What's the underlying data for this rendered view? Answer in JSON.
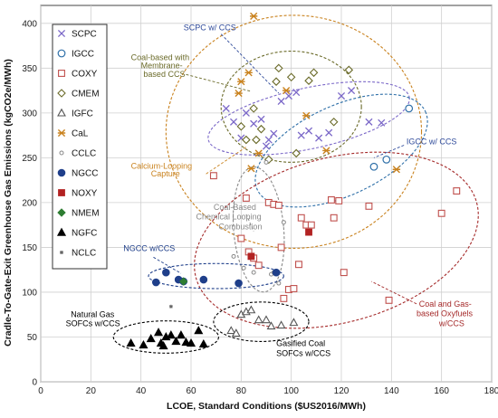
{
  "chart_data": {
    "type": "scatter",
    "xlabel": "LCOE, Standard Conditions ($US2016/MWh)",
    "ylabel": "Cradle-To-Gate-Exit Greenhouse Gas Emissions (kgCO2e/MWh)",
    "xlim": [
      0,
      180
    ],
    "ylim": [
      0,
      420
    ],
    "xticks": [
      0,
      20,
      40,
      60,
      80,
      100,
      120,
      140,
      160,
      180
    ],
    "yticks": [
      0,
      50,
      100,
      150,
      200,
      250,
      300,
      350,
      400
    ],
    "grid": true,
    "legend_position": "top-left",
    "series": [
      {
        "name": "SCPC",
        "marker": "x",
        "color": "#7b68c8",
        "points": [
          [
            74,
            305
          ],
          [
            77,
            290
          ],
          [
            80,
            272
          ],
          [
            82,
            300
          ],
          [
            85,
            288
          ],
          [
            88,
            293
          ],
          [
            90,
            263
          ],
          [
            91,
            270
          ],
          [
            93,
            277
          ],
          [
            96,
            313
          ],
          [
            99,
            319
          ],
          [
            102,
            323
          ],
          [
            104,
            275
          ],
          [
            107,
            280
          ],
          [
            111,
            272
          ],
          [
            115,
            278
          ],
          [
            120,
            319
          ],
          [
            124,
            325
          ],
          [
            131,
            290
          ],
          [
            136,
            289
          ]
        ]
      },
      {
        "name": "IGCC",
        "marker": "circle-open",
        "color": "#2e6fa8",
        "points": [
          [
            133,
            240
          ],
          [
            138,
            248
          ],
          [
            147,
            305
          ]
        ]
      },
      {
        "name": "COXY",
        "marker": "square-open",
        "color": "#c0504d",
        "points": [
          [
            69,
            230
          ],
          [
            80,
            160
          ],
          [
            82,
            205
          ],
          [
            83,
            145
          ],
          [
            85,
            138
          ],
          [
            87,
            130
          ],
          [
            91,
            200
          ],
          [
            93,
            198
          ],
          [
            95,
            197
          ],
          [
            96,
            150
          ],
          [
            97,
            93
          ],
          [
            99,
            103
          ],
          [
            101,
            104
          ],
          [
            103,
            131
          ],
          [
            104,
            183
          ],
          [
            106,
            175
          ],
          [
            108,
            175
          ],
          [
            116,
            203
          ],
          [
            117,
            183
          ],
          [
            119,
            202
          ],
          [
            121,
            122
          ],
          [
            131,
            196
          ],
          [
            139,
            91
          ],
          [
            160,
            188
          ],
          [
            166,
            213
          ]
        ]
      },
      {
        "name": "CMEM",
        "marker": "diamond-open",
        "color": "#6b6b2a",
        "points": [
          [
            80,
            285
          ],
          [
            82,
            270
          ],
          [
            85,
            305
          ],
          [
            86,
            270
          ],
          [
            88,
            282
          ],
          [
            91,
            248
          ],
          [
            94,
            335
          ],
          [
            95,
            350
          ],
          [
            100,
            340
          ],
          [
            102,
            255
          ],
          [
            107,
            336
          ],
          [
            109,
            345
          ],
          [
            117,
            290
          ],
          [
            123,
            348
          ]
        ]
      },
      {
        "name": "IGFC",
        "marker": "triangle-open",
        "color": "#555555",
        "points": [
          [
            76,
            57
          ],
          [
            78,
            54
          ],
          [
            80,
            75
          ],
          [
            82,
            78
          ],
          [
            84,
            80
          ],
          [
            87,
            69
          ],
          [
            90,
            69
          ],
          [
            92,
            62
          ],
          [
            96,
            63
          ],
          [
            101,
            66
          ]
        ]
      },
      {
        "name": "CaL",
        "marker": "star",
        "color": "#c9821e",
        "points": [
          [
            79,
            322
          ],
          [
            80,
            335
          ],
          [
            83,
            345
          ],
          [
            85,
            408
          ],
          [
            87,
            255
          ],
          [
            84,
            238
          ],
          [
            98,
            325
          ],
          [
            106,
            297
          ],
          [
            114,
            258
          ],
          [
            142,
            237
          ]
        ]
      },
      {
        "name": "CCLC",
        "marker": "dot-open",
        "color": "#888888",
        "points": [
          [
            77,
            140
          ],
          [
            81,
            127
          ],
          [
            85,
            122
          ],
          [
            90,
            245
          ],
          [
            92,
            120
          ],
          [
            93,
            122
          ],
          [
            95,
            110
          ],
          [
            97,
            178
          ]
        ]
      },
      {
        "name": "NGCC",
        "marker": "circle-filled",
        "color": "#1f3f8a",
        "points": [
          [
            46,
            111
          ],
          [
            50,
            122
          ],
          [
            55,
            114
          ],
          [
            57,
            112
          ],
          [
            65,
            114
          ],
          [
            79,
            110
          ],
          [
            94,
            122
          ]
        ]
      },
      {
        "name": "NOXY",
        "marker": "square-filled",
        "color": "#b22222",
        "points": [
          [
            84,
            140
          ],
          [
            107,
            167
          ]
        ]
      },
      {
        "name": "NMEM",
        "marker": "diamond-filled",
        "color": "#2e7d32",
        "points": [
          [
            57,
            112
          ]
        ]
      },
      {
        "name": "NGFC",
        "marker": "triangle-filled",
        "color": "#000000",
        "points": [
          [
            36,
            43
          ],
          [
            41,
            41
          ],
          [
            44,
            48
          ],
          [
            47,
            55
          ],
          [
            48,
            43
          ],
          [
            49,
            40
          ],
          [
            50,
            50
          ],
          [
            52,
            52
          ],
          [
            54,
            45
          ],
          [
            56,
            52
          ],
          [
            58,
            44
          ],
          [
            60,
            43
          ],
          [
            63,
            57
          ],
          [
            65,
            42
          ]
        ]
      },
      {
        "name": "NCLC",
        "marker": "asterisk",
        "color": "#666666",
        "points": [
          [
            52,
            84
          ]
        ]
      }
    ],
    "ellipses": [
      {
        "name": "scpc-ccs",
        "color": "#7b68c8",
        "cx": 107,
        "cy": 294,
        "rx": 41,
        "ry": 34,
        "rot": -12
      },
      {
        "name": "cmem",
        "color": "#6b6b2a",
        "cx": 100,
        "cy": 307,
        "rx": 28,
        "ry": 62,
        "rot": 0
      },
      {
        "name": "igcc",
        "color": "#2e6fa8",
        "cx": 120,
        "cy": 258,
        "rx": 37,
        "ry": 50,
        "rot": -25
      },
      {
        "name": "cal",
        "color": "#c9821e",
        "cx": 101,
        "cy": 279,
        "rx": 51,
        "ry": 130,
        "rot": 0
      },
      {
        "name": "cclc",
        "color": "#888888",
        "cx": 87,
        "cy": 170,
        "rx": 10,
        "ry": 70,
        "rot": -5
      },
      {
        "name": "coxy",
        "color": "#a52a2a",
        "cx": 118,
        "cy": 158,
        "rx": 58,
        "ry": 92,
        "rot": -15
      },
      {
        "name": "ngcc",
        "color": "#1f3f8a",
        "cx": 70,
        "cy": 118,
        "rx": 27,
        "ry": 14,
        "rot": 0
      },
      {
        "name": "ngfc",
        "color": "#000000",
        "cx": 50,
        "cy": 50,
        "rx": 21,
        "ry": 18,
        "rot": 0
      },
      {
        "name": "igfc",
        "color": "#000000",
        "cx": 88,
        "cy": 67,
        "rx": 19,
        "ry": 22,
        "rot": 0
      }
    ],
    "annotations": [
      {
        "text": "SCPC w/ CCS",
        "color": "#2e4a9a",
        "x": 57,
        "y": 392,
        "lx": 72,
        "ly": 388,
        "tx": 95,
        "ty": 322
      },
      {
        "text": "Coal-based with",
        "color": "#6b6b2a",
        "x": 36,
        "y": 359
      },
      {
        "text": "Membrane-",
        "color": "#6b6b2a",
        "x": 40,
        "y": 350
      },
      {
        "text": "based CCS",
        "color": "#6b6b2a",
        "x": 41,
        "y": 340,
        "lx": 58,
        "ly": 343,
        "tx": 84,
        "ty": 324
      },
      {
        "text": "IGCC w/ CCS",
        "color": "#2e4a9a",
        "x": 146,
        "y": 265,
        "lx": 145,
        "ly": 264,
        "tx": 133,
        "ty": 250
      },
      {
        "text": "Calcium-Looping",
        "color": "#c9821e",
        "x": 36,
        "y": 238
      },
      {
        "text": "Capture",
        "color": "#c9821e",
        "x": 44,
        "y": 229,
        "lx": 66,
        "ly": 232,
        "tx": 82,
        "ty": 262
      },
      {
        "text": "Coal-Based",
        "color": "#888888",
        "x": 69,
        "y": 192
      },
      {
        "text": "Chemical Looping",
        "color": "#888888",
        "x": 62,
        "y": 181
      },
      {
        "text": "Combustion",
        "color": "#888888",
        "x": 71,
        "y": 170,
        "lx": 82,
        "ly": 187,
        "tx": 85,
        "ty": 168
      },
      {
        "text": "NGCC w/CCS",
        "color": "#1f3f8a",
        "x": 33,
        "y": 146,
        "lx": 45,
        "ly": 139,
        "tx": 56,
        "ty": 121
      },
      {
        "text": "Coal and Gas-",
        "color": "#a52a2a",
        "x": 151,
        "y": 84
      },
      {
        "text": "based Oxyfuels",
        "color": "#a52a2a",
        "x": 150,
        "y": 73
      },
      {
        "text": "w/CCS",
        "color": "#a52a2a",
        "x": 159,
        "y": 62,
        "lx": 150,
        "ly": 87,
        "tx": 132,
        "ty": 112
      },
      {
        "text": "Natural Gas",
        "color": "#000000",
        "x": 12,
        "y": 72
      },
      {
        "text": "SOFCs w/CCS",
        "color": "#000000",
        "x": 10,
        "y": 62
      },
      {
        "text": "Gasified Coal",
        "color": "#000000",
        "x": 94,
        "y": 40
      },
      {
        "text": "SOFCs w/CCS",
        "color": "#000000",
        "x": 94,
        "y": 29
      }
    ]
  }
}
